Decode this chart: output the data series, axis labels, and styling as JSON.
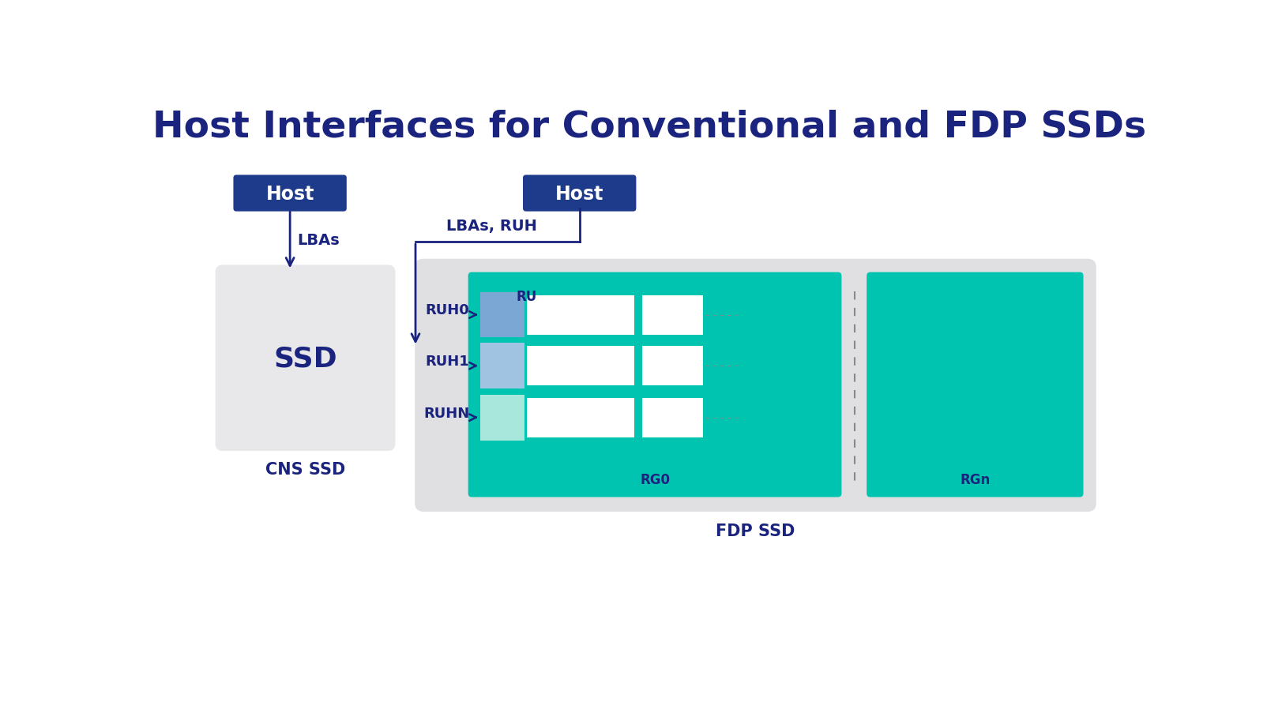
{
  "title": "Host Interfaces for Conventional and FDP SSDs",
  "title_color": "#1a237e",
  "title_fontsize": 34,
  "bg_color": "#ffffff",
  "dark_blue": "#1a237e",
  "teal": "#00c4b0",
  "host_btn_color": "#1e3a8a",
  "white": "#ffffff",
  "arrow_color": "#1a237e",
  "label_color": "#1a237e",
  "ssd_box_color": "#e8e8ea",
  "fdp_outer_color": "#e0e0e3",
  "rg0_color": "#00c4b0",
  "rgn_color": "#00c4b0",
  "ruh0_fill": "#7ba7d4",
  "ruh1_fill": "#9fc3e0",
  "ruhn_fill": "#a8e8dc",
  "dashed_color": "#888888",
  "cns_label": "CNS SSD",
  "fdp_label": "FDP SSD",
  "ssd_text": "SSD",
  "host_text": "Host",
  "lbas_text": "LBAs",
  "lbas_ruh_text": "LBAs, RUH",
  "ru_text": "RU",
  "rg0_text": "RG0",
  "rgn_text": "RGn",
  "ruh_labels": [
    "RUH0",
    "RUH1",
    "RUHN"
  ],
  "ruh_fills": [
    "#7ba7d4",
    "#9fc3e0",
    "#a8e8dc"
  ]
}
